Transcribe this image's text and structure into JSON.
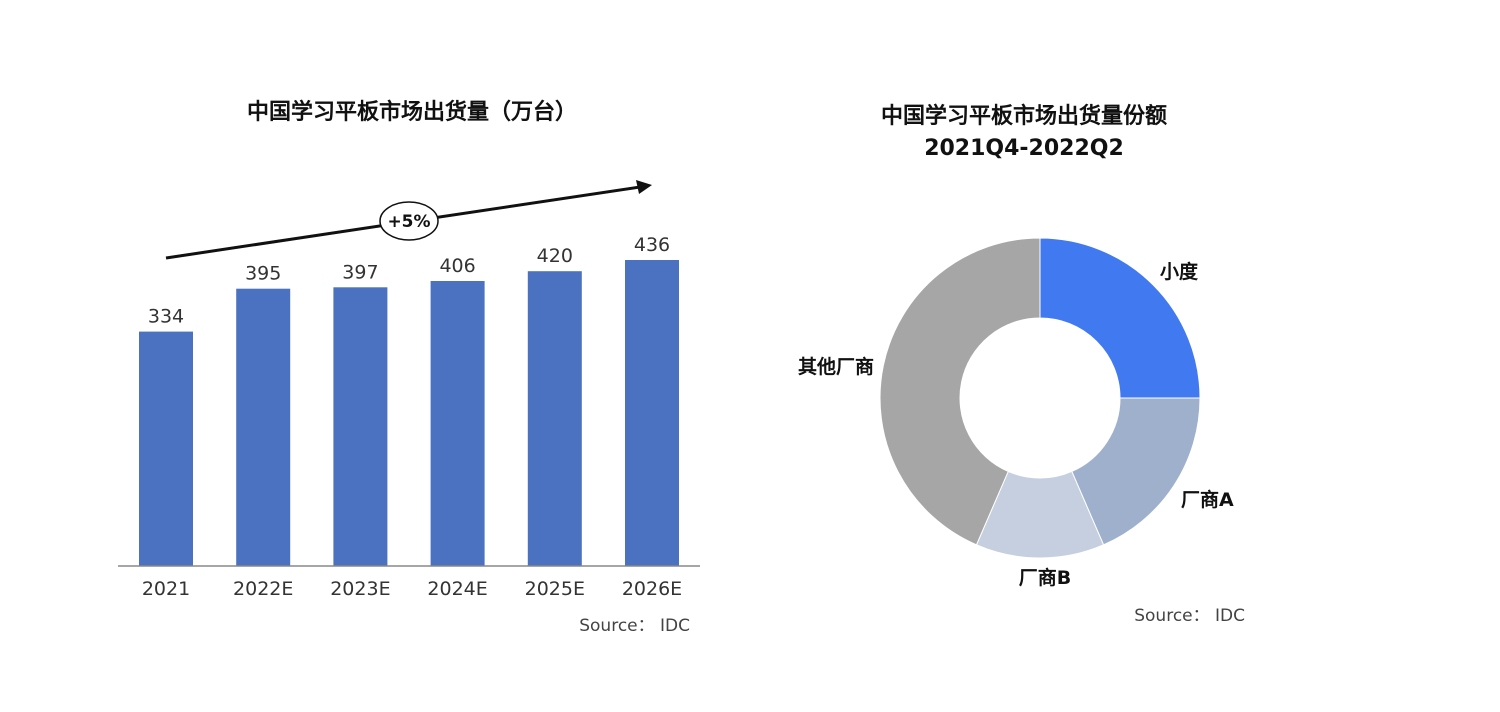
{
  "chart_data": [
    {
      "type": "bar",
      "title": "中国学习平板市场出货量（万台）",
      "categories": [
        "2021",
        "2022E",
        "2023E",
        "2024E",
        "2025E",
        "2026E"
      ],
      "values": [
        334,
        395,
        397,
        406,
        420,
        436
      ],
      "bar_color": "#4a72c0",
      "trend_annotation": "+5%",
      "source": "Source：  IDC",
      "ylim": [
        0,
        500
      ],
      "grid": false,
      "legend": "none"
    },
    {
      "type": "pie",
      "title_lines": [
        "中国学习平板市场出货量份额",
        "2021Q4-2022Q2"
      ],
      "slices": [
        {
          "label": "小度",
          "value": 25,
          "color": "#4179f0"
        },
        {
          "label": "厂商A",
          "value": 18.5,
          "color": "#9fb0cc"
        },
        {
          "label": "厂商B",
          "value": 13,
          "color": "#c5cfe0"
        },
        {
          "label": "其他厂商",
          "value": 43.5,
          "color": "#a6a6a6"
        }
      ],
      "source": "Source：  IDC",
      "legend": "none"
    }
  ]
}
